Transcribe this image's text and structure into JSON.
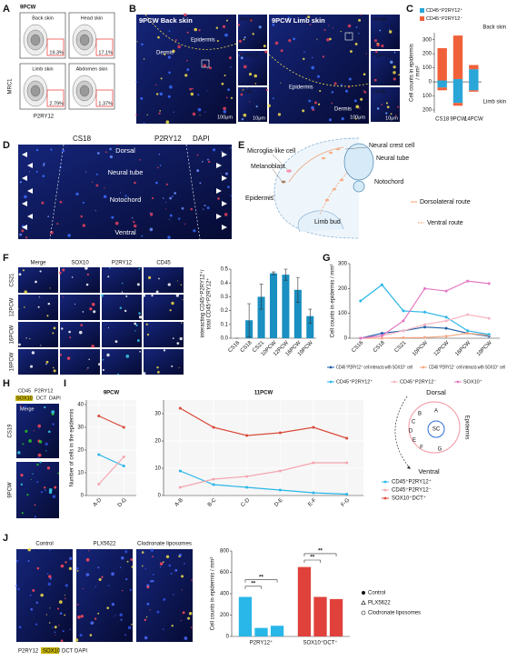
{
  "panel_labels": [
    "A",
    "B",
    "C",
    "D",
    "E",
    "F",
    "G",
    "H",
    "I",
    "J"
  ],
  "panel_a": {
    "title": "9PCW",
    "plots": [
      {
        "label": "Back skin",
        "percent": "19.3%"
      },
      {
        "label": "Head skin",
        "percent": "17.1%"
      },
      {
        "label": "Limb skin",
        "percent": "2.79%"
      },
      {
        "label": "Abdomen skin",
        "percent": "1.37%"
      }
    ],
    "y_label": "MRC1",
    "x_label": "P2RY12"
  },
  "panel_b": {
    "images": [
      {
        "title": "9PCW Back skin",
        "regions": [
          "Epidermis",
          "Dermis"
        ]
      },
      {
        "title": "9PCW Limb skin",
        "regions": [
          "Epidermis",
          "Dermis"
        ]
      }
    ],
    "scale": "100μm",
    "insets": [
      "Merge",
      "P2RY12",
      "CD45"
    ],
    "inset_scale": "10μm"
  },
  "panel_d": {
    "title": "CS18",
    "channels": [
      "P2RY12",
      "DAPI"
    ],
    "regions": [
      "Dorsal",
      "Neural tube",
      "Notochord",
      "Ventral"
    ]
  },
  "panel_e": {
    "labels": [
      "Microglia-like cell",
      "Neural crest cell",
      "Neural tube",
      "Melanoblast",
      "Notochord",
      "Epidermis",
      "Limb bud",
      "Dorsolateral route",
      "Ventral route"
    ]
  },
  "panel_f": {
    "channels": [
      "Merge",
      "SOX10",
      "P2RY12",
      "CD45"
    ],
    "rows": [
      "CS21",
      "12PCW",
      "16PCW",
      "19PCW"
    ]
  },
  "panel_h": {
    "channels": [
      "CD45",
      "P2RY12",
      "SOX10",
      "DCT",
      "DAPI"
    ],
    "merge": "Merge",
    "rows": [
      "CS19",
      "9PCW"
    ]
  },
  "panel_i_diagram": {
    "dorsal": "Dorsal",
    "ventral": "Ventral",
    "letters": [
      "A",
      "B",
      "C",
      "D",
      "E",
      "F",
      "G"
    ],
    "center": "SC",
    "ring": "Epidermis"
  },
  "panel_j": {
    "conditions": [
      "Control",
      "PLX5622",
      "Clodronate liposomes"
    ],
    "channels": [
      "P2RY12",
      "SOX10",
      "DCT",
      "DAPI"
    ]
  },
  "chart_data": [
    {
      "type": "bar",
      "stacked": true,
      "y_label": [
        "Cell counts in epidermis",
        "/ mm²"
      ],
      "categories": [
        "CS18",
        "9PCW",
        "14PCW"
      ],
      "group_labels": [
        "Back skin",
        "Limb skin"
      ],
      "series": [
        {
          "name": "CD45⁺P2RY12⁺",
          "color": "#2aa6d8",
          "values": [
            10,
            20,
            90
          ],
          "values_limb": [
            -40,
            -150,
            -60
          ]
        },
        {
          "name": "CD45⁺P2RY12⁻",
          "color": "#f0613a",
          "values": [
            230,
            310,
            30
          ],
          "values_limb": [
            -20,
            -20,
            -10
          ]
        }
      ],
      "ylim": [
        -220,
        350
      ],
      "yticks": [
        {
          "value": -200,
          "label": "200"
        },
        {
          "value": -100,
          "label": "100"
        },
        0,
        100,
        200,
        300
      ]
    },
    {
      "type": "bar",
      "y_label": [
        "interacting CD45⁺P2RY12⁺/",
        "total CD45⁺P2RY12⁺"
      ],
      "categories": [
        "CS16",
        "CS18",
        "CS21",
        "10PCW",
        "12PCW",
        "16PCW",
        "19PCW"
      ],
      "values": [
        0,
        0.13,
        0.3,
        0.47,
        0.46,
        0.35,
        0.16
      ],
      "errors": [
        0,
        0.12,
        0.09,
        0.01,
        0.04,
        0.09,
        0.05
      ],
      "color": "#1a8fc1",
      "ylim": [
        0,
        0.5
      ],
      "yticks": [
        {
          "value": 0,
          "label": "0.0"
        },
        0.1,
        0.2,
        0.3,
        0.4,
        0.5
      ]
    },
    {
      "type": "line",
      "y_label": "Cell counts in epidermis / mm²",
      "categories": [
        "CS16",
        "CS18",
        "CS21",
        "10PCW",
        "12PCW",
        "16PCW",
        "19PCW"
      ],
      "series": [
        {
          "name": "CD45⁺P2RY12⁺ cell interacts with SOX10⁺ cell",
          "color": "#1f5fa8",
          "values": [
            0,
            20,
            30,
            45,
            40,
            20,
            8
          ]
        },
        {
          "name": "CD45⁺P2RY12⁻ cell interacts with SOX10⁺ cell",
          "color": "#f4a582",
          "values": [
            0,
            0,
            2,
            3,
            8,
            20,
            12
          ]
        },
        {
          "name": "CD45⁺P2RY12⁺",
          "color": "#29b6e8",
          "values": [
            150,
            215,
            110,
            105,
            85,
            30,
            15
          ]
        },
        {
          "name": "CD45⁺P2RY12⁻",
          "color": "#f7b6c2",
          "values": [
            0,
            10,
            30,
            55,
            70,
            95,
            80
          ]
        },
        {
          "name": "SOX10⁺",
          "color": "#e377c2",
          "values": [
            0,
            10,
            70,
            200,
            190,
            230,
            220
          ]
        }
      ],
      "ylim": [
        0,
        300
      ],
      "yticks": [
        0,
        100,
        200,
        300
      ]
    },
    {
      "type": "line",
      "title": "9PCW",
      "y_label": "Number of cells in the epidermis",
      "grid": true,
      "categories": [
        "A-D",
        "D-G"
      ],
      "series": [
        {
          "color": "#29b6e8",
          "values": [
            18,
            13
          ]
        },
        {
          "color": "#f4a6b0",
          "values": [
            5,
            17
          ]
        },
        {
          "color": "#d94a3a",
          "values": [
            35,
            30
          ]
        }
      ],
      "ylim": [
        0,
        42
      ],
      "yticks": [
        0,
        10,
        20,
        30,
        40
      ]
    },
    {
      "type": "line",
      "title": "11PCW",
      "grid": true,
      "categories": [
        "A-B",
        "B-C",
        "C-D",
        "D-E",
        "E-F",
        "F-G"
      ],
      "series": [
        {
          "name": "CD45⁺P2RY12⁺",
          "color": "#29b6e8",
          "values": [
            9,
            4,
            3,
            2,
            1,
            0.5
          ]
        },
        {
          "name": "CD45⁺P2RY12⁻",
          "color": "#f4a6b0",
          "values": [
            3,
            6,
            7,
            9,
            12,
            12
          ]
        },
        {
          "name": "SOX10⁺DCT⁺",
          "color": "#d94a3a",
          "values": [
            32,
            25,
            22,
            23,
            25,
            21
          ]
        }
      ],
      "ylim": [
        0,
        35
      ],
      "yticks": [
        0,
        10,
        20,
        30
      ]
    },
    {
      "type": "bar",
      "y_label": "Cell counts in epidermis / mm²",
      "categories": [
        "P2RY12⁺",
        "SOX10⁺DCT⁺"
      ],
      "colors": [
        "#29b6e8",
        "#e0413a"
      ],
      "series": [
        {
          "name": "Control",
          "marker": "circle",
          "values": [
            370,
            650
          ]
        },
        {
          "name": "PLX5622",
          "marker": "triangle",
          "values": [
            80,
            370
          ]
        },
        {
          "name": "Clodronate liposomes",
          "marker": "open-circle",
          "values": [
            100,
            350
          ]
        }
      ],
      "annotations": [
        "**",
        "**",
        "**",
        "**"
      ],
      "ylim": [
        0,
        800
      ],
      "yticks": [
        0,
        200,
        400,
        600,
        800
      ]
    }
  ]
}
